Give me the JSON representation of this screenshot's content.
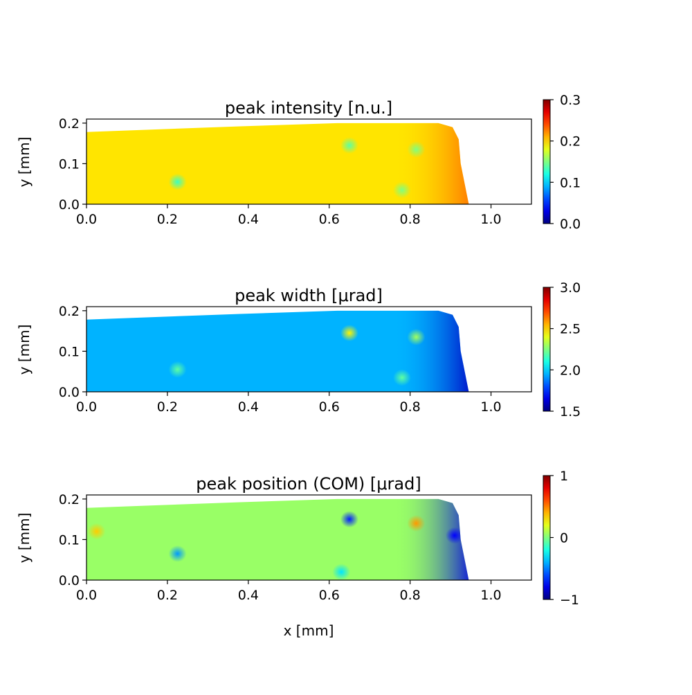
{
  "chart_data": [
    {
      "type": "heatmap",
      "title": "peak intensity [n.u.]",
      "xlabel": "",
      "ylabel": "y [mm]",
      "xlim": [
        0.0,
        1.1
      ],
      "ylim": [
        0.0,
        0.21
      ],
      "xticks": [
        "0.0",
        "0.2",
        "0.4",
        "0.6",
        "0.8",
        "1.0"
      ],
      "yticks": [
        "0.0",
        "0.1",
        "0.2"
      ],
      "colorbar": {
        "min": 0.0,
        "max": 0.3,
        "ticks": [
          "0.0",
          "0.1",
          "0.2",
          "0.3"
        ],
        "colormap": "jet"
      },
      "base_value": 0.195,
      "edge_value": 0.23,
      "spots": [
        {
          "x": 0.225,
          "y": 0.055,
          "value": 0.13
        },
        {
          "x": 0.65,
          "y": 0.145,
          "value": 0.14
        },
        {
          "x": 0.815,
          "y": 0.135,
          "value": 0.15
        },
        {
          "x": 0.78,
          "y": 0.035,
          "value": 0.15
        }
      ]
    },
    {
      "type": "heatmap",
      "title": "peak width [μrad]",
      "xlabel": "",
      "ylabel": "y [mm]",
      "xlim": [
        0.0,
        1.1
      ],
      "ylim": [
        0.0,
        0.21
      ],
      "xticks": [
        "0.0",
        "0.2",
        "0.4",
        "0.6",
        "0.8",
        "1.0"
      ],
      "yticks": [
        "0.0",
        "0.1",
        "0.2"
      ],
      "colorbar": {
        "min": 1.5,
        "max": 3.0,
        "ticks": [
          "1.5",
          "2.0",
          "2.5",
          "3.0"
        ],
        "colormap": "jet"
      },
      "base_value": 1.95,
      "edge_value": 1.6,
      "spots": [
        {
          "x": 0.225,
          "y": 0.055,
          "value": 2.2
        },
        {
          "x": 0.65,
          "y": 0.145,
          "value": 2.45
        },
        {
          "x": 0.815,
          "y": 0.135,
          "value": 2.3
        },
        {
          "x": 0.78,
          "y": 0.035,
          "value": 2.2
        }
      ]
    },
    {
      "type": "heatmap",
      "title": "peak position (COM) [μrad]",
      "xlabel": "x [mm]",
      "ylabel": "y [mm]",
      "xlim": [
        0.0,
        1.1
      ],
      "ylim": [
        0.0,
        0.21
      ],
      "xticks": [
        "0.0",
        "0.2",
        "0.4",
        "0.6",
        "0.8",
        "1.0"
      ],
      "yticks": [
        "0.0",
        "0.1",
        "0.2"
      ],
      "colorbar": {
        "min": -1,
        "max": 1,
        "ticks": [
          "−1",
          "0",
          "1"
        ],
        "colormap": "jet"
      },
      "base_value": 0.05,
      "edge_value": -0.8,
      "spots": [
        {
          "x": 0.225,
          "y": 0.065,
          "value": -0.45
        },
        {
          "x": 0.65,
          "y": 0.15,
          "value": -0.7
        },
        {
          "x": 0.815,
          "y": 0.14,
          "value": 0.45
        },
        {
          "x": 0.025,
          "y": 0.12,
          "value": 0.35
        },
        {
          "x": 0.63,
          "y": 0.02,
          "value": -0.3
        },
        {
          "x": 0.91,
          "y": 0.11,
          "value": -0.75
        }
      ]
    }
  ]
}
